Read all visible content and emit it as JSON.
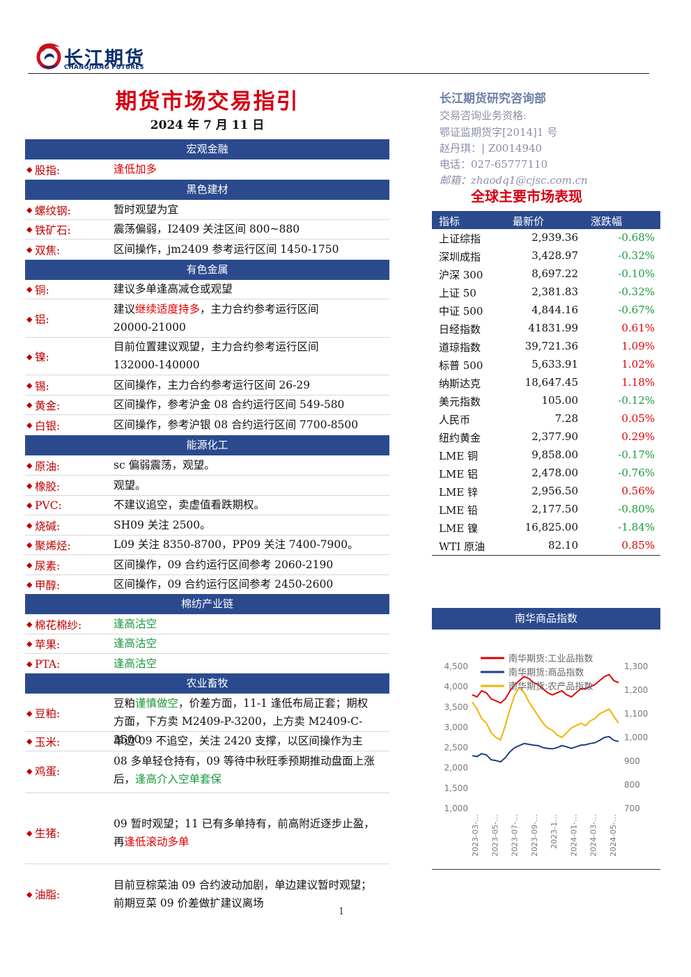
{
  "header": {
    "logo_cn": "长江期货",
    "logo_en": "CHANGJIANG FUTURES",
    "title": "期货市场交易指引",
    "date": "2024 年 7 月 11 日"
  },
  "contact": {
    "dept": "长江期货研究咨询部",
    "line1": "交易咨询业务资格:",
    "line2": "鄂证监期货字[2014]1 号",
    "line3": "赵丹琪：| Z0014940",
    "line4": "电话：027-65777110",
    "line5": "邮箱：zhaodq1@cjsc.com.cn"
  },
  "sections": {
    "macro": "宏观金融",
    "black": "黑色建材",
    "nonferrous": "有色金属",
    "energy": "能源化工",
    "cotton": "棉纺产业链",
    "agri": "农业畜牧"
  },
  "rows": {
    "stock": {
      "label": "股指:",
      "text": "逢低加多"
    },
    "rebar": {
      "label": "螺纹钢:",
      "text": "暂时观望为宜"
    },
    "ironore": {
      "label": "铁矿石:",
      "text": "震荡偏弱，I2409 关注区间 800~880"
    },
    "coke": {
      "label": "双焦:",
      "text": "区间操作，jm2409 参考运行区间 1450-1750"
    },
    "copper": {
      "label": "铜:",
      "text": "建议多单逢高减仓或观望"
    },
    "aluminum": {
      "label": "铝:",
      "text_a": "建议",
      "text_b": "继续适度持多",
      "text_c": "，主力合约参考运行区间",
      "text_d": "20000-21000"
    },
    "nickel": {
      "label": "镍:",
      "text_a": "目前位置建议观望，主力合约参考运行区间",
      "text_b": "132000-140000"
    },
    "tin": {
      "label": "锡:",
      "text": "区间操作，主力合约参考运行区间 26-29"
    },
    "gold": {
      "label": "黄金:",
      "text": "区间操作，参考沪金 08 合约运行区间 549-580"
    },
    "silver": {
      "label": "白银:",
      "text": "区间操作，参考沪银 08 合约运行区间 7700-8500"
    },
    "crude": {
      "label": "原油:",
      "text": "sc 偏弱震荡，观望。"
    },
    "rubber": {
      "label": "橡胶:",
      "text": "观望。"
    },
    "pvc": {
      "label": "PVC:",
      "text": "不建议追空，卖虚值看跌期权。"
    },
    "soda": {
      "label": "烧碱:",
      "text": "SH09 关注 2500。"
    },
    "polyolefin": {
      "label": "聚烯烃:",
      "text": "L09 关注 8350-8700，PP09 关注 7400-7900。"
    },
    "urea": {
      "label": "尿素:",
      "text": "区间操作，09 合约运行区间参考 2060-2190"
    },
    "methanol": {
      "label": "甲醇:",
      "text": "区间操作，09 合约运行区间参考 2450-2600"
    },
    "cottonyarn": {
      "label": "棉花棉纱:",
      "text": "逢高沽空"
    },
    "apple": {
      "label": "苹果:",
      "text": "逢高沽空"
    },
    "pta": {
      "label": "PTA:",
      "text": "逢高沽空"
    },
    "soymeal": {
      "label": "豆粕:",
      "text_a": "豆粕",
      "text_b": "谨慎做空",
      "text_c": "，价差方面，11-1 逢低布局正套；期权",
      "text_d": "方面，下方卖 M2409-P-3200，上方卖 M2409-C-3500"
    },
    "corn": {
      "label": "玉米:",
      "text": "单边 09 不追空，关注 2420 支撑，以区间操作为主"
    },
    "egg": {
      "label": "鸡蛋:",
      "text_a": "08 多单轻仓持有，09 等待中秋旺季预期推动盘面上涨",
      "text_b": "后，",
      "text_c": "逢高介入空单套保"
    },
    "hog": {
      "label": "生猪:",
      "text_a": "09 暂时观望；11 已有多单持有，前高附近逐步止盈，",
      "text_b": "再",
      "text_c": "逢低滚动多单"
    },
    "oil": {
      "label": "油脂:",
      "text_a": "目前豆棕菜油 09 合约波动加剧，单边建议暂时观望；",
      "text_b": "前期豆菜 09 价差做扩建议离场"
    }
  },
  "market": {
    "title": "全球主要市场表现",
    "headers": [
      "指标",
      "最新价",
      "涨跌幅"
    ],
    "rows": [
      {
        "name": "上证综指",
        "price": "2,939.36",
        "chg": "-0.68%",
        "dir": "neg"
      },
      {
        "name": "深圳成指",
        "price": "3,428.97",
        "chg": "-0.32%",
        "dir": "neg"
      },
      {
        "name": "沪深 300",
        "price": "8,697.22",
        "chg": "-0.10%",
        "dir": "neg"
      },
      {
        "name": "上证 50",
        "price": "2,381.83",
        "chg": "-0.32%",
        "dir": "neg"
      },
      {
        "name": "中证 500",
        "price": "4,844.16",
        "chg": "-0.67%",
        "dir": "neg"
      },
      {
        "name": "日经指数",
        "price": "41831.99",
        "chg": "0.61%",
        "dir": "pos"
      },
      {
        "name": "道琼指数",
        "price": "39,721.36",
        "chg": "1.09%",
        "dir": "pos"
      },
      {
        "name": "标普 500",
        "price": "5,633.91",
        "chg": "1.02%",
        "dir": "pos"
      },
      {
        "name": "纳斯达克",
        "price": "18,647.45",
        "chg": "1.18%",
        "dir": "pos"
      },
      {
        "name": "美元指数",
        "price": "105.00",
        "chg": "-0.12%",
        "dir": "neg"
      },
      {
        "name": "人民币",
        "price": "7.28",
        "chg": "0.05%",
        "dir": "pos"
      },
      {
        "name": "纽约黄金",
        "price": "2,377.90",
        "chg": "0.29%",
        "dir": "pos"
      },
      {
        "name": "LME 铜",
        "price": "9,858.00",
        "chg": "-0.17%",
        "dir": "neg"
      },
      {
        "name": "LME 铝",
        "price": "2,478.00",
        "chg": "-0.76%",
        "dir": "neg"
      },
      {
        "name": "LME 锌",
        "price": "2,956.50",
        "chg": "0.56%",
        "dir": "pos"
      },
      {
        "name": "LME 铅",
        "price": "2,177.50",
        "chg": "-0.80%",
        "dir": "neg"
      },
      {
        "name": "LME 镍",
        "price": "16,825.00",
        "chg": "-1.84%",
        "dir": "neg"
      },
      {
        "name": "WTI 原油",
        "price": "82.10",
        "chg": "0.85%",
        "dir": "pos"
      }
    ]
  },
  "chart_title": "南华商品指数",
  "chart_data": {
    "type": "line",
    "title": "",
    "x_ticks": [
      "2023-03-…",
      "2023-05-…",
      "2023-07-…",
      "2023-09-…",
      "2023-1…",
      "2024-01-…",
      "2024-03-…",
      "2024-05-…"
    ],
    "y_left_ticks": [
      "4,500",
      "4,000",
      "3,500",
      "3,000",
      "2,500",
      "2,000",
      "1,500",
      "1,000"
    ],
    "y_left_range": [
      1000,
      4500
    ],
    "y_right_ticks": [
      "1,300",
      "1,200",
      "1,100",
      "1,000",
      "900",
      "800",
      "700"
    ],
    "y_right_range": [
      700,
      1300
    ],
    "series": [
      {
        "name": "南华期货:工业品指数",
        "axis": "left",
        "color": "#e00000",
        "values": [
          3800,
          3750,
          3900,
          3850,
          3700,
          3650,
          3600,
          3700,
          3900,
          4050,
          4150,
          4250,
          4200,
          4100,
          4050,
          3950,
          3850,
          3800,
          3850,
          3900,
          3800,
          3750,
          3850,
          3950,
          3950,
          4000,
          4050,
          4150,
          4250,
          4300,
          4150,
          4100
        ]
      },
      {
        "name": "南华期货:商品指数",
        "axis": "left",
        "color": "#1f3c88",
        "values": [
          2300,
          2280,
          2350,
          2320,
          2200,
          2180,
          2150,
          2250,
          2400,
          2500,
          2550,
          2600,
          2580,
          2560,
          2550,
          2500,
          2480,
          2470,
          2500,
          2550,
          2520,
          2480,
          2520,
          2560,
          2570,
          2600,
          2620,
          2680,
          2750,
          2770,
          2680,
          2650
        ]
      },
      {
        "name": "南华期货:农产品指数",
        "axis": "right",
        "color": "#f0b400",
        "values": [
          1150,
          1120,
          1080,
          1060,
          1020,
          1000,
          990,
          1050,
          1120,
          1180,
          1210,
          1190,
          1150,
          1120,
          1090,
          1060,
          1040,
          1030,
          1010,
          1000,
          1020,
          1040,
          1050,
          1060,
          1050,
          1070,
          1080,
          1100,
          1110,
          1120,
          1090,
          1060
        ]
      }
    ]
  },
  "page_number": "1"
}
